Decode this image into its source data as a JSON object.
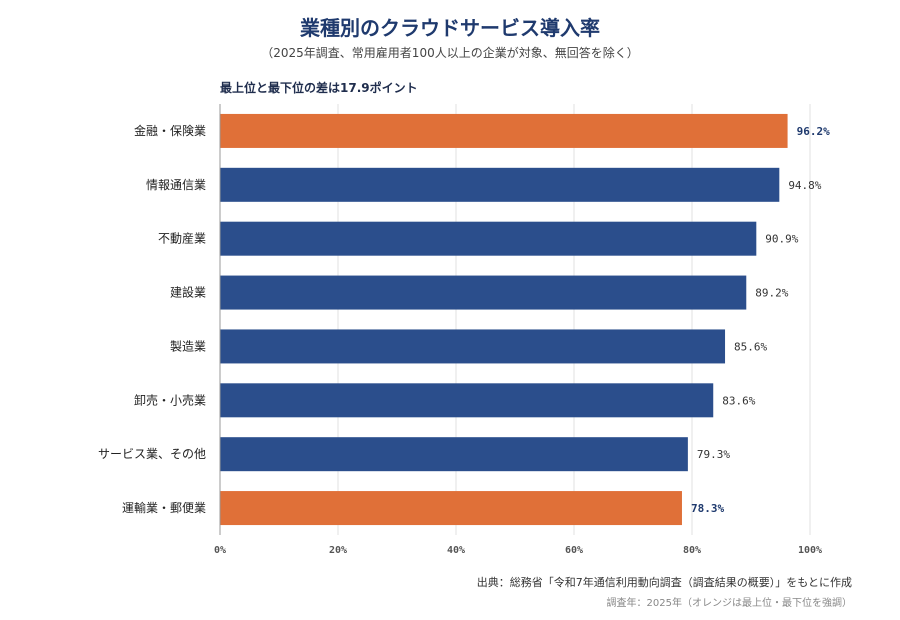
{
  "title": "業種別のクラウドサービス導入率",
  "subtitle": "（2025年調査、常用雇用者100人以上の企業が対象、無回答を除く）",
  "annotation": "最上位と最下位の差は17.9ポイント",
  "source": "出典：総務省「令和7年通信利用動向調査（調査結果の概要）」をもとに作成",
  "note": "調査年：2025年（オレンジは最上位・最下位を強調）",
  "colors": {
    "highlight": "#e07038",
    "base": "#2b4e8c",
    "grid": "#e2e2e2",
    "axis": "#999999"
  },
  "chart_data": {
    "type": "bar",
    "orientation": "horizontal",
    "categories": [
      "金融・保険業",
      "情報通信業",
      "不動産業",
      "建設業",
      "製造業",
      "卸売・小売業",
      "サービス業、その他",
      "運輸業・郵便業"
    ],
    "values": [
      96.2,
      94.8,
      90.9,
      89.2,
      85.6,
      83.6,
      79.3,
      78.3
    ],
    "value_labels": [
      "96.2%",
      "94.8%",
      "90.9%",
      "89.2%",
      "85.6%",
      "83.6%",
      "79.3%",
      "78.3%"
    ],
    "highlight": [
      true,
      false,
      false,
      false,
      false,
      false,
      false,
      true
    ],
    "xlim": [
      0,
      100
    ],
    "x_ticks": [
      0,
      20,
      40,
      60,
      80,
      100
    ],
    "x_tick_labels": [
      "0%",
      "20%",
      "40%",
      "60%",
      "80%",
      "100%"
    ],
    "grid": true
  }
}
